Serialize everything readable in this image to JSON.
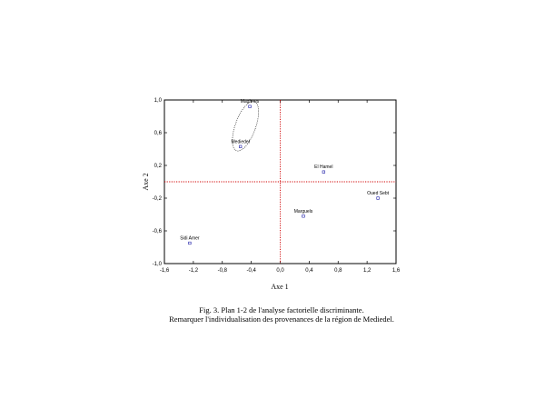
{
  "chart_data": {
    "type": "scatter",
    "xlabel": "Axe 1",
    "ylabel": "Axe 2",
    "xlim": [
      -1.6,
      1.6
    ],
    "ylim": [
      -1.0,
      1.0
    ],
    "xticks": [
      "-1,6",
      "-1,2",
      "-0,8",
      "-0,4",
      "0,0",
      "0,4",
      "0,8",
      "1,2",
      "1,6"
    ],
    "yticks": [
      "-1,0",
      "-0,6",
      "-0,2",
      "0,2",
      "0,6",
      "1,0"
    ],
    "reference_lines": {
      "x": 0,
      "y": 0,
      "color": "#d00000",
      "style": "dotted"
    },
    "grid": false,
    "points": [
      {
        "label": "Maghnes",
        "x": -0.42,
        "y": 0.92
      },
      {
        "label": "Mediedel",
        "x": -0.55,
        "y": 0.43
      },
      {
        "label": "El Hamel",
        "x": 0.6,
        "y": 0.12
      },
      {
        "label": "Oued Sebt",
        "x": 1.35,
        "y": -0.2
      },
      {
        "label": "Marguels",
        "x": 0.32,
        "y": -0.42
      },
      {
        "label": "Sidi Amer",
        "x": -1.25,
        "y": -0.75
      }
    ],
    "point_color": "#1a1aa6",
    "highlight_ellipse": {
      "x": -0.48,
      "y": 0.68,
      "rx": 0.14,
      "ry": 0.32,
      "rotation_deg": 20,
      "style": "dotted"
    }
  },
  "caption": {
    "line1": "Fig. 3. Plan 1-2 de l'analyse factorielle discriminante.",
    "line2": "Remarquer l'individualisation des provenances de la région de Mediedel."
  }
}
